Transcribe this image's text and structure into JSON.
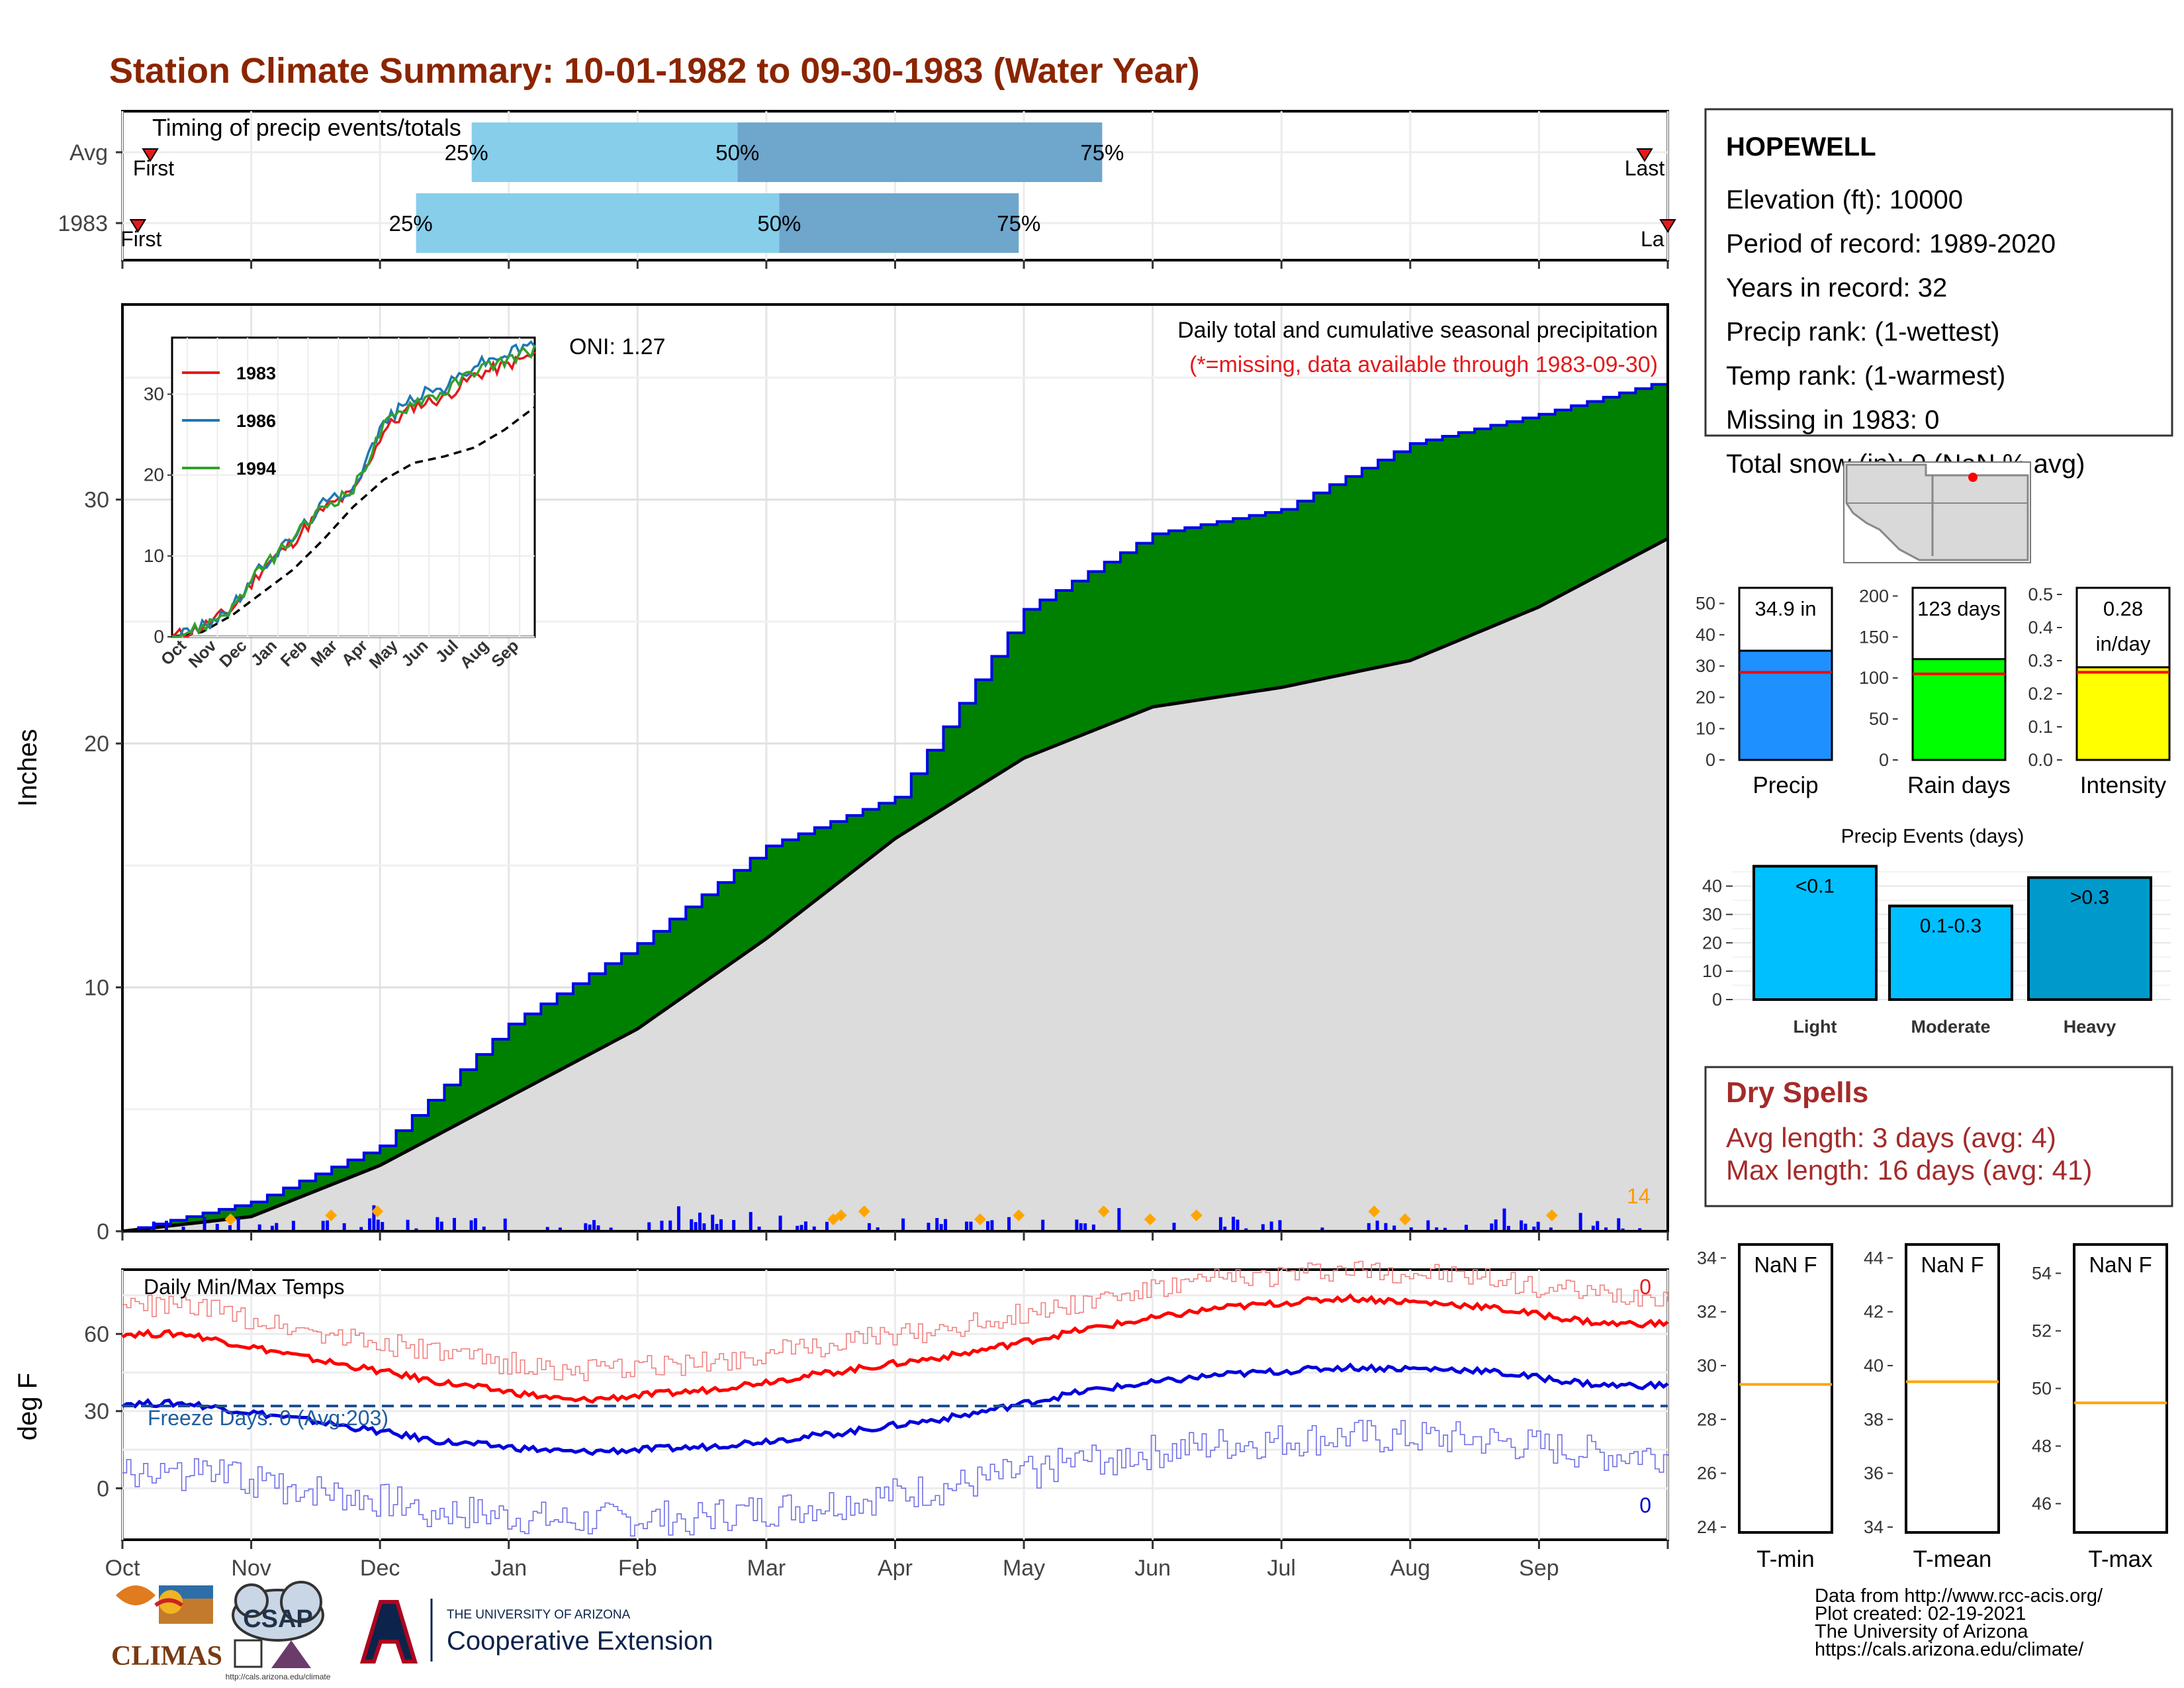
{
  "title": "Station Climate Summary: 10-01-1982 to 09-30-1983 (Water Year)",
  "timing": {
    "title": "Timing of precip events/totals",
    "rows": [
      {
        "label": "Avg",
        "first_label": "First",
        "last_label": "Last",
        "p25_label": "25%",
        "p50_label": "50%",
        "p75_label": "75%",
        "p25": 0.226,
        "p50": 0.398,
        "p75": 0.634,
        "first": 0.018,
        "last": 0.985
      },
      {
        "label": "1983",
        "first_label": "First",
        "last_label": "La",
        "p25_label": "25%",
        "p50_label": "50%",
        "p75_label": "75%",
        "p25": 0.19,
        "p50": 0.425,
        "p75": 0.58,
        "first": 0.01,
        "last": 1.0
      }
    ]
  },
  "station": {
    "name": "HOPEWELL",
    "lines": [
      "Elevation (ft): 10000",
      "Period of record: 1989-2020",
      "Years in record: 32",
      "Precip rank:  (1-wettest)",
      "Temp rank:  (1-warmest)",
      "Missing in 1983: 0",
      "Total snow (in): 0 (NaN % avg)"
    ]
  },
  "main_chart": {
    "ylabel": "Inches",
    "title_line1": "Daily total and cumulative seasonal precipitation",
    "title_line2": "(*=missing, data available through 1983-09-30)",
    "oni": "ONI: 1.27",
    "count_label": "14",
    "yticks": [
      "0",
      "10",
      "20",
      "30"
    ]
  },
  "months": [
    "Oct",
    "Nov",
    "Dec",
    "Jan",
    "Feb",
    "Mar",
    "Apr",
    "May",
    "Jun",
    "Jul",
    "Aug",
    "Sep"
  ],
  "inset": {
    "legend": [
      "1983",
      "1986",
      "1994"
    ],
    "yticks": [
      "0",
      "10",
      "20",
      "30"
    ],
    "colors": [
      "#e31a1c",
      "#1f78b4",
      "#33a02c"
    ]
  },
  "summary_bars": [
    {
      "axis_label": "Precip",
      "value_label": "34.9 in",
      "value_label2": "",
      "color": "#1e90ff",
      "ticks": [
        "0",
        "10",
        "20",
        "30",
        "40",
        "50"
      ]
    },
    {
      "axis_label": "Rain days",
      "value_label": "123 days",
      "value_label2": "",
      "color": "#00ff00",
      "ticks": [
        "0",
        "50",
        "100",
        "150",
        "200"
      ]
    },
    {
      "axis_label": "Intensity",
      "value_label": "0.28",
      "value_label2": "in/day",
      "color": "#ffff00",
      "ticks": [
        "0.0",
        "0.1",
        "0.2",
        "0.3",
        "0.4",
        "0.5"
      ]
    }
  ],
  "events": {
    "title": "Precip Events (days)",
    "ticks": [
      "0",
      "10",
      "20",
      "30",
      "40"
    ],
    "categories": [
      "Light",
      "Moderate",
      "Heavy"
    ],
    "labels": [
      "<0.1",
      "0.1-0.3",
      ">0.3"
    ],
    "values": [
      47,
      33,
      43
    ]
  },
  "dry_spells": {
    "title": "Dry Spells",
    "avg": "Avg length: 3 days (avg: 4)",
    "max": "Max length: 16 days (avg: 41)"
  },
  "temps": {
    "ylabel": "deg F",
    "title": "Daily Min/Max Temps",
    "freeze_label": "Freeze Days: 0 (Avg:203)",
    "max_count": "0",
    "min_count": "0",
    "yticks": [
      "0",
      "30",
      "60"
    ]
  },
  "temp_boxes": [
    {
      "axis_label": "T-min",
      "value_label": "NaN F",
      "ticks": [
        "24",
        "26",
        "28",
        "30",
        "32",
        "34"
      ]
    },
    {
      "axis_label": "T-mean",
      "value_label": "NaN F",
      "ticks": [
        "34",
        "36",
        "38",
        "40",
        "42",
        "44"
      ]
    },
    {
      "axis_label": "T-max",
      "value_label": "NaN F",
      "ticks": [
        "46",
        "48",
        "50",
        "52",
        "54"
      ]
    }
  ],
  "credits": [
    "Data from http://www.rcc-acis.org/",
    "Plot created: 02-19-2021",
    "The University of Arizona",
    "https://cals.arizona.edu/climate/"
  ],
  "logos": {
    "climas": "CLIMAS",
    "csap": "CSAP",
    "csap_url": "http://cals.arizona.edu/climate",
    "ua_small": "THE UNIVERSITY OF ARIZONA",
    "ua_big": "Cooperative Extension"
  },
  "chart_data": {
    "type": "area",
    "title": "Daily total and cumulative seasonal precipitation",
    "ylabel": "Inches",
    "xlabel": "",
    "ylim": [
      0,
      38
    ],
    "x": [
      "Oct",
      "Nov",
      "Dec",
      "Jan",
      "Feb",
      "Mar",
      "Apr",
      "May",
      "Jun",
      "Jul",
      "Aug",
      "Sep"
    ],
    "series": [
      {
        "name": "1983",
        "values": [
          1.2,
          3.5,
          8.5,
          11.8,
          15.8,
          17.8,
          25.5,
          28.6,
          29.6,
          32.3,
          33.5,
          34.9
        ]
      },
      {
        "name": "Avg",
        "values": [
          0.6,
          2.7,
          5.5,
          8.3,
          12.0,
          16.1,
          19.4,
          21.5,
          22.3,
          23.4,
          25.6,
          28.4
        ]
      }
    ],
    "temps": {
      "max_avg": [
        60,
        50,
        41,
        34,
        38,
        45,
        52,
        62,
        70,
        74,
        71,
        64
      ],
      "min_avg": [
        33,
        26,
        18,
        14,
        16,
        21,
        28,
        38,
        44,
        47,
        46,
        40
      ],
      "freeze_line": 32,
      "ylim": [
        -20,
        85
      ]
    }
  }
}
